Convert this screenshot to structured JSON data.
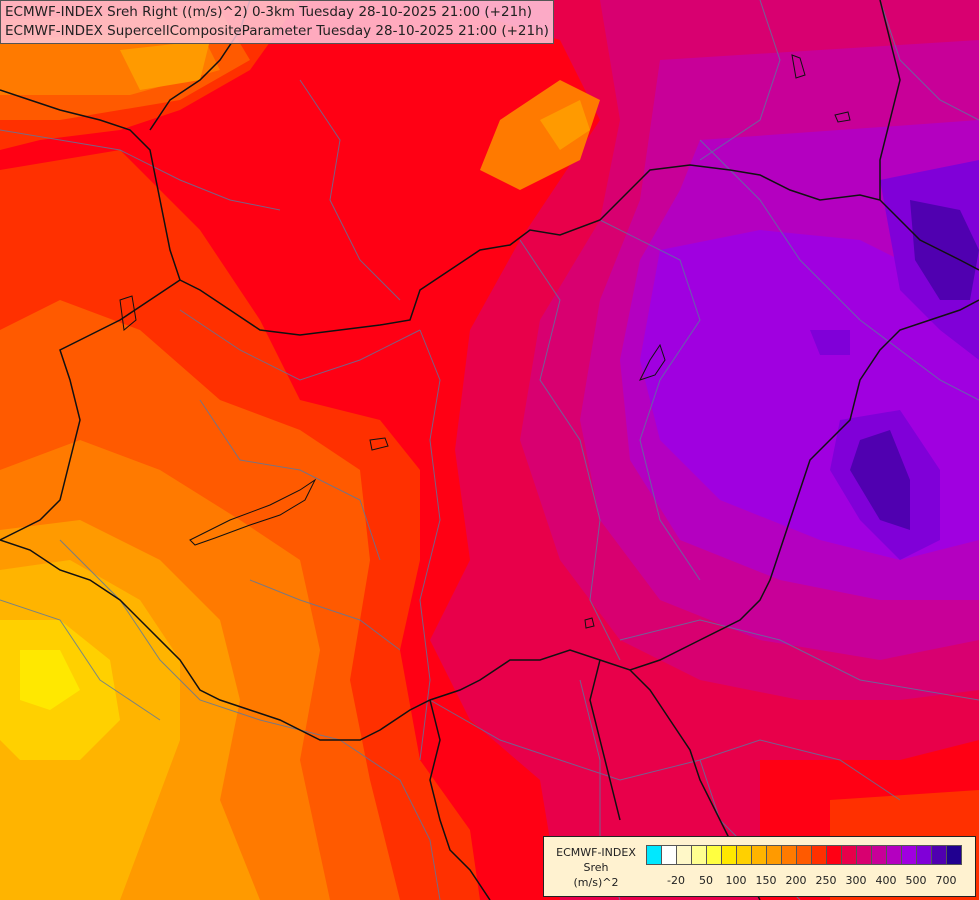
{
  "header": {
    "line1": "ECMWF-INDEX Sreh Right ((m/s)^2) 0-3km Tuesday 28-10-2025 21:00 (+21h)",
    "line2": "ECMWF-INDEX SupercellCompositeParameter Tuesday 28-10-2025 21:00 (+21h)"
  },
  "legend": {
    "line1": "ECMWF-INDEX",
    "line2": "Sreh",
    "line3": "(m/s)^2",
    "colors": [
      "#00e8ff",
      "#ffffff",
      "#fff8c8",
      "#ffff90",
      "#ffff40",
      "#ffe800",
      "#ffd000",
      "#ffb400",
      "#ff9a00",
      "#ff7a00",
      "#ff5a00",
      "#ff3000",
      "#ff0014",
      "#e8004a",
      "#d80070",
      "#c80098",
      "#b400c0",
      "#a000e0",
      "#8000d8",
      "#5000b0",
      "#200090"
    ],
    "ticks": [
      {
        "label": "-20",
        "index": 1
      },
      {
        "label": "50",
        "index": 3
      },
      {
        "label": "100",
        "index": 5
      },
      {
        "label": "150",
        "index": 7
      },
      {
        "label": "200",
        "index": 9
      },
      {
        "label": "250",
        "index": 11
      },
      {
        "label": "300",
        "index": 13
      },
      {
        "label": "400",
        "index": 15
      },
      {
        "label": "500",
        "index": 17
      },
      {
        "label": "700",
        "index": 19
      }
    ]
  }
}
